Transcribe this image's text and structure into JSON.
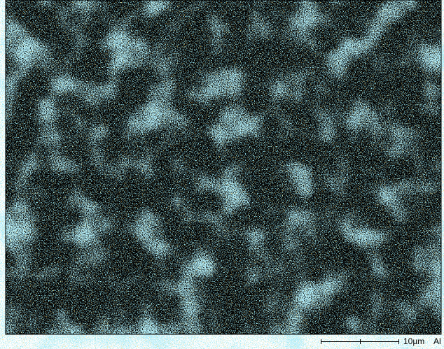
{
  "scale_bar": {
    "label": "10µm"
  },
  "element": "Al"
}
